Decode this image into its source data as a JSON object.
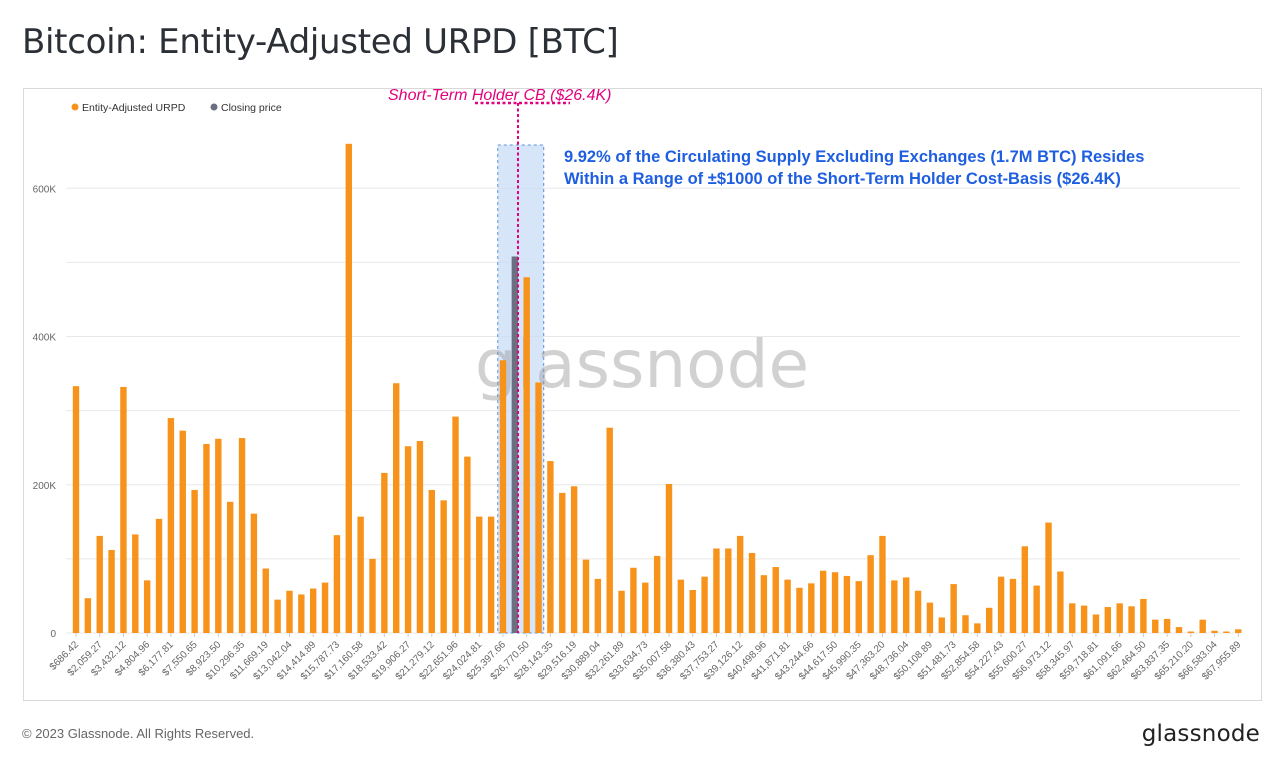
{
  "page": {
    "title": "Bitcoin: Entity-Adjusted URPD [BTC]",
    "copyright": "© 2023 Glassnode. All Rights Reserved.",
    "brand": "glassnode",
    "watermark": "glassnode"
  },
  "colors": {
    "bar": "#f7931a",
    "closing_price": "#6b6f82",
    "highlight_band": "#c9dcf7",
    "highlight_border": "#5b8fe0",
    "annotation_line": "#e3007d",
    "annotation_text_blue": "#1e5ee0",
    "grid": "#e8e8e8",
    "axis_text": "#666666"
  },
  "chart_data": {
    "type": "bar",
    "title": "Bitcoin: Entity-Adjusted URPD [BTC]",
    "xlabel": "",
    "ylabel": "",
    "ylim": [
      0,
      680000
    ],
    "yticks": [
      0,
      200000,
      400000,
      600000
    ],
    "ytick_labels": [
      "0",
      "200K",
      "400K",
      "600K"
    ],
    "grid": true,
    "legend_position": "top-left",
    "legend": [
      {
        "label": "Entity-Adjusted URPD",
        "color": "#f7931a"
      },
      {
        "label": "Closing price",
        "color": "#6b6f82"
      }
    ],
    "x_tick_labels": [
      "$686.42",
      "$2,059.27",
      "$3,432.12",
      "$4,804.96",
      "$6,177.81",
      "$7,550.65",
      "$8,923.50",
      "$10,296.35",
      "$11,669.19",
      "$13,042.04",
      "$14,414.89",
      "$15,787.73",
      "$17,160.58",
      "$18,533.42",
      "$19,906.27",
      "$21,279.12",
      "$22,651.96",
      "$24,024.81",
      "$25,397.66",
      "$26,770.50",
      "$28,143.35",
      "$29,516.19",
      "$30,889.04",
      "$32,261.89",
      "$33,634.73",
      "$35,007.58",
      "$36,380.43",
      "$37,753.27",
      "$39,126.12",
      "$40,498.96",
      "$41,871.81",
      "$43,244.66",
      "$44,617.50",
      "$45,990.35",
      "$47,363.20",
      "$48,736.04",
      "$50,108.89",
      "$51,481.73",
      "$52,854.58",
      "$54,227.43",
      "$55,600.27",
      "$56,973.12",
      "$58,345.97",
      "$59,718.81",
      "$61,091.66",
      "$62,464.50",
      "$63,837.35",
      "$65,210.20",
      "$66,583.04",
      "$67,955.89"
    ],
    "values": [
      333000,
      47000,
      131000,
      112000,
      332000,
      133000,
      71000,
      154000,
      290000,
      273000,
      193000,
      255000,
      262000,
      177000,
      263000,
      161000,
      87000,
      45000,
      57000,
      52000,
      60000,
      68000,
      132000,
      660000,
      157000,
      100000,
      216000,
      337000,
      252000,
      259000,
      193000,
      179000,
      292000,
      238000,
      157000,
      157000,
      368000,
      508000,
      480000,
      338000,
      232000,
      189000,
      198000,
      99000,
      73000,
      277000,
      57000,
      88000,
      68000,
      104000,
      201000,
      72000,
      58000,
      76000,
      114000,
      114000,
      131000,
      108000,
      78000,
      89000,
      72000,
      61000,
      67000,
      84000,
      82000,
      77000,
      70000,
      105000,
      131000,
      71000,
      75000,
      57000,
      41000,
      21000,
      66000,
      24000,
      13000,
      34000,
      76000,
      73000,
      117000,
      64000,
      149000,
      83000,
      40000,
      37000,
      25000,
      35000,
      40000,
      36000,
      46000,
      18000,
      19000,
      8000,
      2000,
      18000,
      3000,
      2000,
      5000
    ],
    "closing_price_bar_index": 37,
    "band_bar_range": [
      36,
      39
    ],
    "reference_line": {
      "label": "Short-Term Holder CB ($26.4K)",
      "x_value": 26400
    },
    "annotation": {
      "line1": "9.92% of the Circulating Supply Excluding Exchanges (1.7M BTC) Resides",
      "line2": "Within a Range of ±$1000 of the Short-Term Holder Cost-Basis ($26.4K)"
    }
  }
}
